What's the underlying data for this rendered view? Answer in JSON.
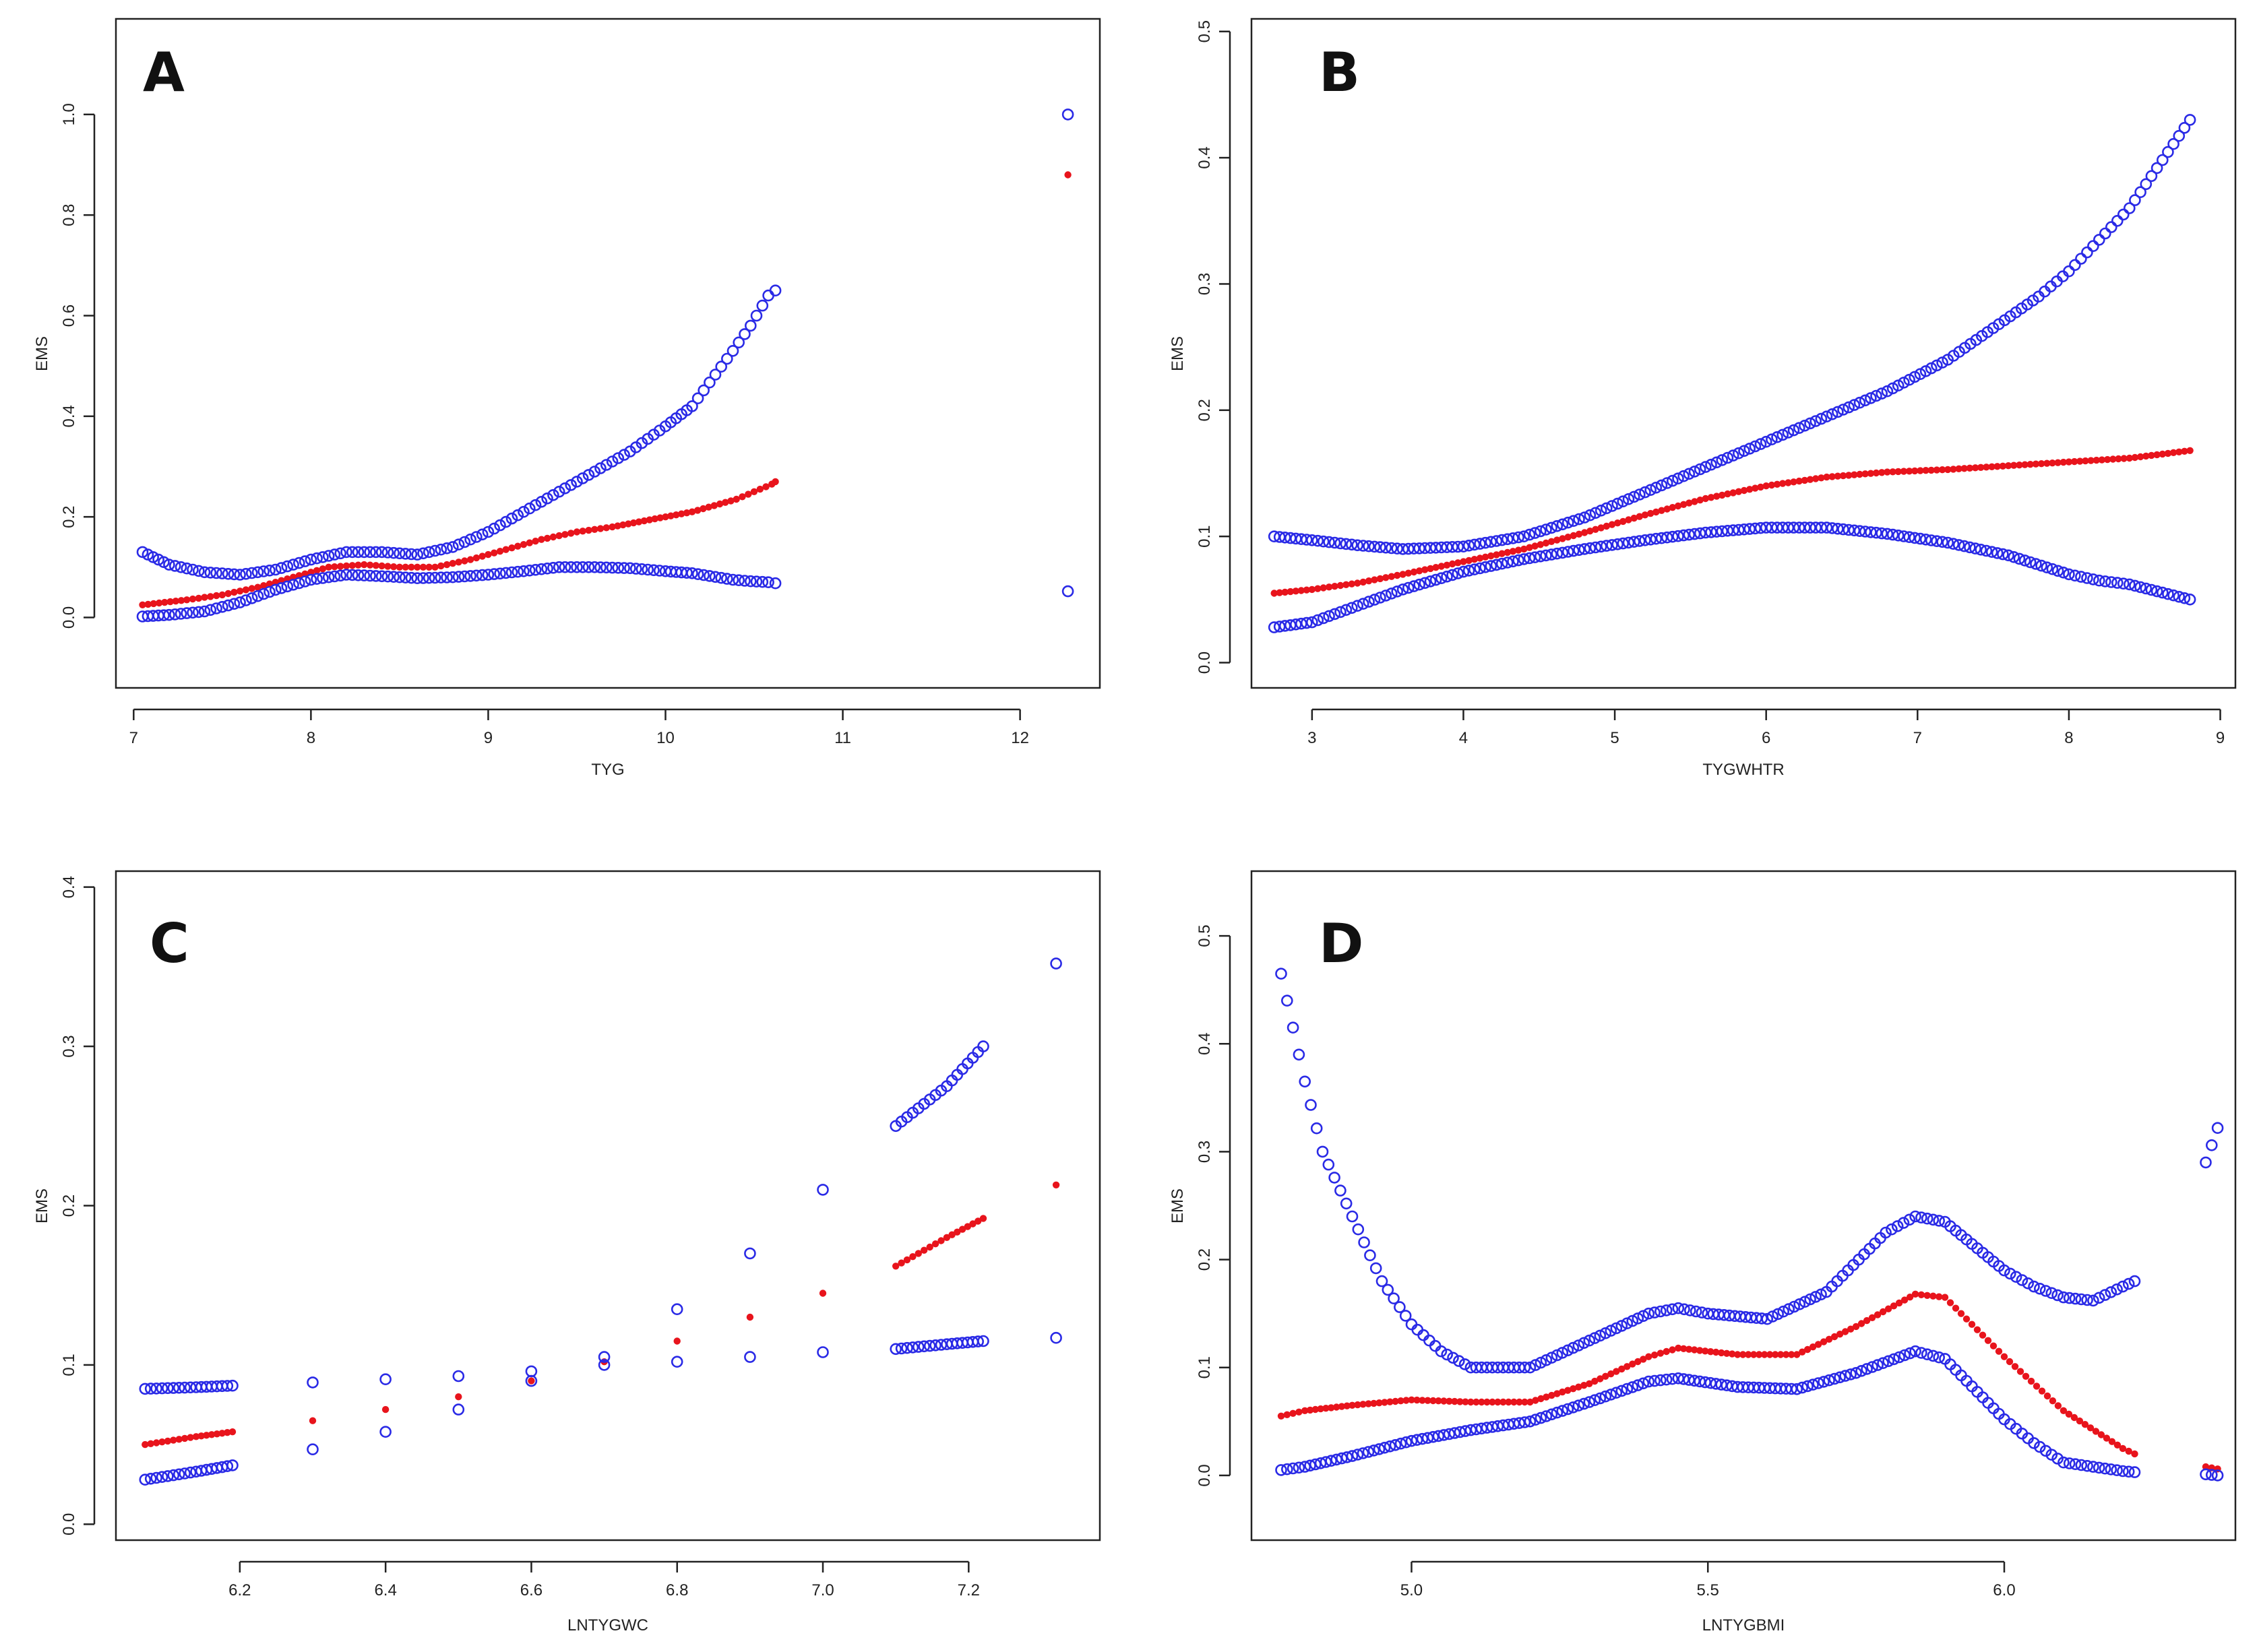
{
  "figure": {
    "colors": {
      "fit": "#e8141c",
      "ci": "#2a2ae6"
    },
    "legend": "none"
  },
  "chart_data": [
    {
      "id": "A",
      "type": "scatter",
      "panel_label": "A",
      "xlabel": "TYG",
      "ylabel": "EMS",
      "xlim": [
        6.9,
        12.45
      ],
      "ylim": [
        -0.14,
        1.19
      ],
      "x_ticks": [
        7,
        8,
        9,
        10,
        11,
        12
      ],
      "x_tick_labels": [
        "7",
        "8",
        "9",
        "10",
        "11",
        "12"
      ],
      "y_ticks": [
        0.0,
        0.2,
        0.4,
        0.6,
        0.8,
        1.0
      ],
      "y_tick_labels": [
        "0.0",
        "0.2",
        "0.4",
        "0.6",
        "0.8",
        "1.0"
      ],
      "series": [
        {
          "name": "fit",
          "x": [
            7.05,
            7.3,
            7.5,
            7.7,
            7.9,
            8.1,
            8.3,
            8.5,
            8.7,
            8.9,
            9.1,
            9.3,
            9.5,
            9.7,
            10.0,
            10.15,
            10.4,
            10.5,
            10.6,
            10.62,
            12.27
          ],
          "y": [
            0.025,
            0.035,
            0.045,
            0.06,
            0.08,
            0.1,
            0.105,
            0.1,
            0.1,
            0.115,
            0.135,
            0.155,
            0.17,
            0.18,
            0.2,
            0.21,
            0.235,
            0.25,
            0.265,
            0.27,
            0.88
          ]
        },
        {
          "name": "ci-upper",
          "x": [
            7.05,
            7.2,
            7.4,
            7.6,
            7.8,
            8.0,
            8.2,
            8.4,
            8.6,
            8.8,
            9.0,
            9.2,
            9.4,
            9.6,
            9.8,
            10.0,
            10.15,
            10.38,
            10.48,
            10.58,
            10.62,
            12.27
          ],
          "y": [
            0.13,
            0.105,
            0.09,
            0.085,
            0.095,
            0.115,
            0.13,
            0.13,
            0.125,
            0.14,
            0.17,
            0.21,
            0.25,
            0.29,
            0.33,
            0.38,
            0.42,
            0.53,
            0.58,
            0.64,
            0.65,
            1.0
          ]
        },
        {
          "name": "ci-lower",
          "x": [
            7.05,
            7.2,
            7.4,
            7.6,
            7.8,
            8.0,
            8.2,
            8.4,
            8.6,
            8.8,
            9.0,
            9.2,
            9.4,
            9.6,
            9.8,
            10.0,
            10.15,
            10.38,
            10.48,
            10.58,
            10.62,
            12.27
          ],
          "y": [
            0.002,
            0.005,
            0.012,
            0.03,
            0.055,
            0.075,
            0.085,
            0.082,
            0.078,
            0.08,
            0.085,
            0.092,
            0.1,
            0.1,
            0.098,
            0.092,
            0.088,
            0.075,
            0.072,
            0.07,
            0.068,
            0.052
          ]
        }
      ]
    },
    {
      "id": "B",
      "type": "scatter",
      "panel_label": "B",
      "xlabel": "TYGWHTR",
      "ylabel": "EMS",
      "xlim": [
        2.6,
        9.1
      ],
      "ylim": [
        -0.02,
        0.51
      ],
      "x_ticks": [
        3,
        4,
        5,
        6,
        7,
        8,
        9
      ],
      "x_tick_labels": [
        "3",
        "4",
        "5",
        "6",
        "7",
        "8",
        "9"
      ],
      "y_ticks": [
        0.0,
        0.1,
        0.2,
        0.3,
        0.4,
        0.5
      ],
      "y_tick_labels": [
        "0.0",
        "0.1",
        "0.2",
        "0.3",
        "0.4",
        "0.5"
      ],
      "series": [
        {
          "name": "fit",
          "x": [
            2.75,
            3.0,
            3.3,
            3.6,
            4.0,
            4.4,
            4.8,
            5.2,
            5.6,
            6.0,
            6.4,
            6.8,
            7.2,
            7.6,
            8.0,
            8.4,
            8.8
          ],
          "y": [
            0.055,
            0.058,
            0.063,
            0.07,
            0.08,
            0.09,
            0.103,
            0.117,
            0.13,
            0.14,
            0.147,
            0.151,
            0.153,
            0.156,
            0.159,
            0.162,
            0.168
          ]
        },
        {
          "name": "ci-upper",
          "x": [
            2.75,
            3.0,
            3.3,
            3.6,
            4.0,
            4.4,
            4.8,
            5.2,
            5.6,
            6.0,
            6.4,
            6.8,
            7.2,
            7.5,
            7.8,
            8.0,
            8.2,
            8.4,
            8.8
          ],
          "y": [
            0.1,
            0.097,
            0.093,
            0.09,
            0.092,
            0.1,
            0.115,
            0.135,
            0.155,
            0.175,
            0.195,
            0.215,
            0.24,
            0.265,
            0.29,
            0.31,
            0.335,
            0.36,
            0.43
          ]
        },
        {
          "name": "ci-lower",
          "x": [
            2.75,
            3.0,
            3.3,
            3.6,
            4.0,
            4.4,
            4.8,
            5.2,
            5.6,
            6.0,
            6.4,
            6.8,
            7.2,
            7.6,
            8.0,
            8.2,
            8.4,
            8.8
          ],
          "y": [
            0.028,
            0.032,
            0.045,
            0.058,
            0.072,
            0.082,
            0.09,
            0.097,
            0.103,
            0.107,
            0.107,
            0.102,
            0.095,
            0.085,
            0.07,
            0.065,
            0.062,
            0.05
          ]
        }
      ]
    },
    {
      "id": "C",
      "type": "scatter",
      "panel_label": "C",
      "xlabel": "LNTYGWC",
      "ylabel": "EMS",
      "xlim": [
        6.03,
        7.38
      ],
      "ylim": [
        -0.01,
        0.41
      ],
      "x_ticks": [
        6.2,
        6.4,
        6.6,
        6.8,
        7.0,
        7.2
      ],
      "x_tick_labels": [
        "6.2",
        "6.4",
        "6.6",
        "6.8",
        "7.0",
        "7.2"
      ],
      "y_ticks": [
        0.0,
        0.1,
        0.2,
        0.3,
        0.4
      ],
      "y_tick_labels": [
        "0.0",
        "0.1",
        "0.2",
        "0.3",
        "0.4"
      ],
      "series": [
        {
          "name": "fit",
          "x": [
            6.07,
            6.14,
            6.19,
            6.3,
            6.4,
            6.5,
            6.6,
            6.7,
            6.8,
            6.9,
            7.0,
            7.1,
            7.17,
            7.22,
            7.32
          ],
          "y": [
            0.05,
            0.055,
            0.058,
            0.065,
            0.072,
            0.08,
            0.09,
            0.102,
            0.115,
            0.13,
            0.145,
            0.162,
            0.18,
            0.192,
            0.213
          ]
        },
        {
          "name": "ci-upper",
          "x": [
            6.07,
            6.14,
            6.19,
            6.3,
            6.4,
            6.5,
            6.6,
            6.7,
            6.8,
            6.9,
            7.0,
            7.1,
            7.17,
            7.22,
            7.32
          ],
          "y": [
            0.085,
            0.086,
            0.087,
            0.089,
            0.091,
            0.093,
            0.096,
            0.105,
            0.135,
            0.17,
            0.21,
            0.25,
            0.275,
            0.3,
            0.352
          ]
        },
        {
          "name": "ci-lower",
          "x": [
            6.07,
            6.14,
            6.19,
            6.3,
            6.4,
            6.5,
            6.6,
            6.7,
            6.8,
            6.9,
            7.0,
            7.1,
            7.17,
            7.22,
            7.32
          ],
          "y": [
            0.028,
            0.033,
            0.037,
            0.047,
            0.058,
            0.072,
            0.09,
            0.1,
            0.102,
            0.105,
            0.108,
            0.11,
            0.113,
            0.115,
            0.117
          ]
        }
      ]
    },
    {
      "id": "D",
      "type": "scatter",
      "panel_label": "D",
      "xlabel": "LNTYGBMI",
      "ylabel": "EMS",
      "xlim": [
        4.73,
        6.39
      ],
      "ylim": [
        -0.06,
        0.56
      ],
      "x_ticks": [
        5.0,
        5.5,
        6.0
      ],
      "x_tick_labels": [
        "5.0",
        "5.5",
        "6.0"
      ],
      "y_ticks": [
        0.0,
        0.1,
        0.2,
        0.3,
        0.4,
        0.5
      ],
      "y_tick_labels": [
        "0.0",
        "0.1",
        "0.2",
        "0.3",
        "0.4",
        "0.5"
      ],
      "series": [
        {
          "name": "fit",
          "x": [
            4.78,
            4.82,
            4.9,
            5.0,
            5.1,
            5.2,
            5.3,
            5.4,
            5.45,
            5.55,
            5.65,
            5.75,
            5.85,
            5.9,
            6.0,
            6.1,
            6.2,
            6.22,
            6.34,
            6.36
          ],
          "y": [
            0.055,
            0.06,
            0.065,
            0.07,
            0.068,
            0.068,
            0.085,
            0.11,
            0.118,
            0.112,
            0.112,
            0.138,
            0.168,
            0.165,
            0.11,
            0.06,
            0.025,
            0.02,
            0.008,
            0.006
          ]
        },
        {
          "name": "ci-upper",
          "x": [
            4.78,
            4.82,
            4.85,
            4.9,
            4.95,
            5.0,
            5.05,
            5.1,
            5.2,
            5.3,
            5.4,
            5.45,
            5.5,
            5.6,
            5.7,
            5.8,
            5.85,
            5.9,
            6.0,
            6.05,
            6.1,
            6.15,
            6.2,
            6.22,
            6.34,
            6.36
          ],
          "y": [
            0.465,
            0.365,
            0.3,
            0.24,
            0.18,
            0.14,
            0.115,
            0.1,
            0.1,
            0.125,
            0.15,
            0.155,
            0.15,
            0.145,
            0.17,
            0.225,
            0.24,
            0.235,
            0.19,
            0.175,
            0.165,
            0.162,
            0.175,
            0.18,
            0.29,
            0.322
          ]
        },
        {
          "name": "ci-lower",
          "x": [
            4.78,
            4.82,
            4.9,
            5.0,
            5.1,
            5.2,
            5.3,
            5.4,
            5.45,
            5.55,
            5.65,
            5.75,
            5.85,
            5.9,
            6.0,
            6.05,
            6.1,
            6.15,
            6.2,
            6.22,
            6.34,
            6.36
          ],
          "y": [
            0.005,
            0.008,
            0.018,
            0.032,
            0.042,
            0.05,
            0.068,
            0.087,
            0.09,
            0.082,
            0.08,
            0.095,
            0.115,
            0.108,
            0.052,
            0.03,
            0.012,
            0.008,
            0.004,
            0.003,
            0.001,
            0.0
          ]
        }
      ]
    }
  ]
}
